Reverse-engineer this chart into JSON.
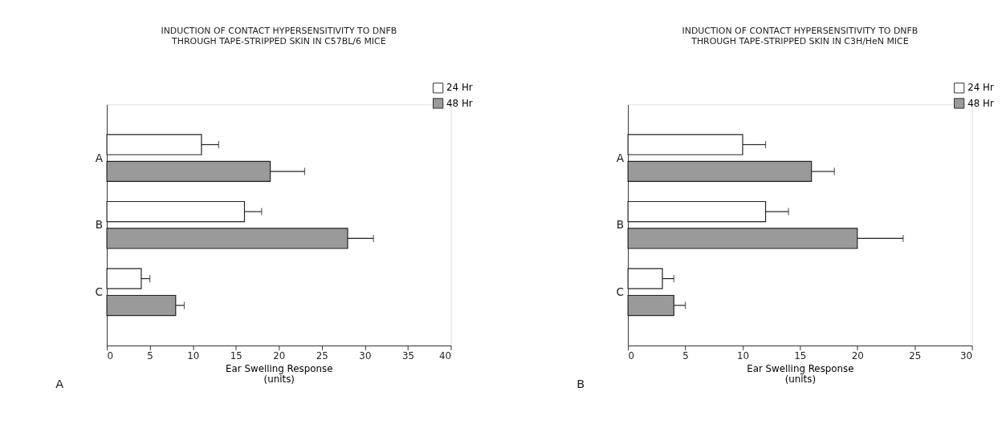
{
  "chart_data": [
    {
      "type": "bar",
      "orientation": "horizontal",
      "title": [
        "INDUCTION OF CONTACT HYPERSENSITIVITY TO DNFB",
        "THROUGH TAPE-STRIPPED SKIN IN C57BL/6 MICE"
      ],
      "xlabel": "Ear Swelling Response",
      "subtitle": "(units)",
      "categories": [
        "A",
        "B",
        "C"
      ],
      "xlim": [
        0,
        40
      ],
      "xticks": [
        0,
        5,
        10,
        15,
        20,
        25,
        30,
        35,
        40
      ],
      "legend": "top right",
      "grid": false,
      "series": [
        {
          "name": "24 Hr",
          "color": "#ffffff",
          "values": [
            11,
            16,
            4
          ],
          "errors": [
            [
              11,
              13
            ],
            [
              16,
              18
            ],
            [
              4,
              5
            ]
          ]
        },
        {
          "name": "48 Hr",
          "color": "#9a9a9a",
          "values": [
            19,
            28,
            8
          ],
          "errors": [
            [
              19,
              23
            ],
            [
              28,
              31
            ],
            [
              8,
              9
            ]
          ]
        }
      ],
      "annotations": [
        "A"
      ]
    },
    {
      "type": "bar",
      "orientation": "horizontal",
      "title": [
        "INDUCTION OF CONTACT HYPERSENSITIVITY TO DNFB",
        "THROUGH TAPE-STRIPPED SKIN IN C3H/HeN MICE"
      ],
      "xlabel": "Ear Swelling Response",
      "subtitle": "(units)",
      "categories": [
        "A",
        "B",
        "C"
      ],
      "xlim": [
        0,
        30
      ],
      "xticks": [
        0,
        5,
        10,
        15,
        20,
        25,
        30
      ],
      "legend": "top right",
      "grid": false,
      "series": [
        {
          "name": "24 Hr",
          "color": "#ffffff",
          "values": [
            10,
            12,
            3
          ],
          "errors": [
            [
              10,
              12
            ],
            [
              12,
              14
            ],
            [
              3,
              4
            ]
          ]
        },
        {
          "name": "48 Hr",
          "color": "#9a9a9a",
          "values": [
            16,
            20,
            4
          ],
          "errors": [
            [
              16,
              18
            ],
            [
              20,
              24
            ],
            [
              4,
              5
            ]
          ]
        }
      ],
      "annotations": [
        "B"
      ]
    }
  ]
}
